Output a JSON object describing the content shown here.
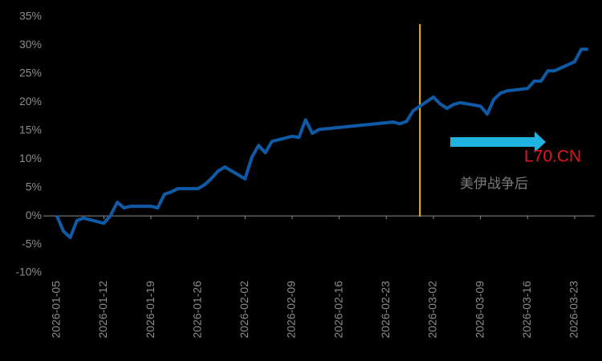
{
  "chart_data": {
    "type": "line",
    "x": [
      "2026-01-05",
      "2026-01-06",
      "2026-01-07",
      "2026-01-08",
      "2026-01-09",
      "2026-01-12",
      "2026-01-13",
      "2026-01-14",
      "2026-01-15",
      "2026-01-16",
      "2026-01-19",
      "2026-01-20",
      "2026-01-21",
      "2026-01-22",
      "2026-01-23",
      "2026-01-26",
      "2026-01-27",
      "2026-01-28",
      "2026-01-29",
      "2026-01-30",
      "2026-02-02",
      "2026-02-03",
      "2026-02-04",
      "2026-02-05",
      "2026-02-06",
      "2026-02-09",
      "2026-02-10",
      "2026-02-11",
      "2026-02-12",
      "2026-02-13",
      "2026-02-24",
      "2026-02-25",
      "2026-02-26",
      "2026-02-27",
      "2026-03-02",
      "2026-03-03",
      "2026-03-04",
      "2026-03-05",
      "2026-03-06",
      "2026-03-09",
      "2026-03-10",
      "2026-03-11",
      "2026-03-12",
      "2026-03-13",
      "2026-03-16",
      "2026-03-17",
      "2026-03-18",
      "2026-03-19",
      "2026-03-20",
      "2026-03-23",
      "2026-03-24",
      "2026-03-25"
    ],
    "series": [
      {
        "name": "L70.CN",
        "color": "#0f5aa6",
        "label_color": "#e0141e",
        "values": [
          0,
          -2.7,
          -3.8,
          -0.8,
          -0.4,
          -1.3,
          0.1,
          2.4,
          1.4,
          1.7,
          1.7,
          1.4,
          3.8,
          4.2,
          4.8,
          4.8,
          5.5,
          6.6,
          7.9,
          8.6,
          6.5,
          10.3,
          12.4,
          11.1,
          13.1,
          14.0,
          13.8,
          16.9,
          14.5,
          15.2,
          16.5,
          16.2,
          16.6,
          18.5,
          20.9,
          19.7,
          18.9,
          19.6,
          19.9,
          19.3,
          17.9,
          20.5,
          21.6,
          22.0,
          22.4,
          23.7,
          23.7,
          25.5,
          25.5,
          27.1,
          29.3,
          29.3
        ]
      }
    ],
    "xlim": [
      "2026-01-03",
      "2026-03-26"
    ],
    "xticks": [
      "2026-01-05",
      "2026-01-12",
      "2026-01-19",
      "2026-01-26",
      "2026-02-02",
      "2026-02-09",
      "2026-02-16",
      "2026-02-23",
      "2026-03-02",
      "2026-03-09",
      "2026-03-16",
      "2026-03-23"
    ],
    "ylim": [
      -10,
      35
    ],
    "yticks": [
      {
        "value": -10,
        "label": "-10%"
      },
      {
        "value": -5,
        "label": "-5%"
      },
      {
        "value": 0,
        "label": "0%"
      },
      {
        "value": 5,
        "label": "5%"
      },
      {
        "value": 10,
        "label": "10%"
      },
      {
        "value": 15,
        "label": "15%"
      },
      {
        "value": 20,
        "label": "20%"
      },
      {
        "value": 25,
        "label": "25%"
      },
      {
        "value": 30,
        "label": "30%"
      },
      {
        "value": 35,
        "label": "35%"
      }
    ],
    "event_line": {
      "x": "2026-02-28",
      "color": "#f5b800"
    },
    "annotation": "美伊战争后",
    "arrow_color": "#1fb4e0"
  }
}
